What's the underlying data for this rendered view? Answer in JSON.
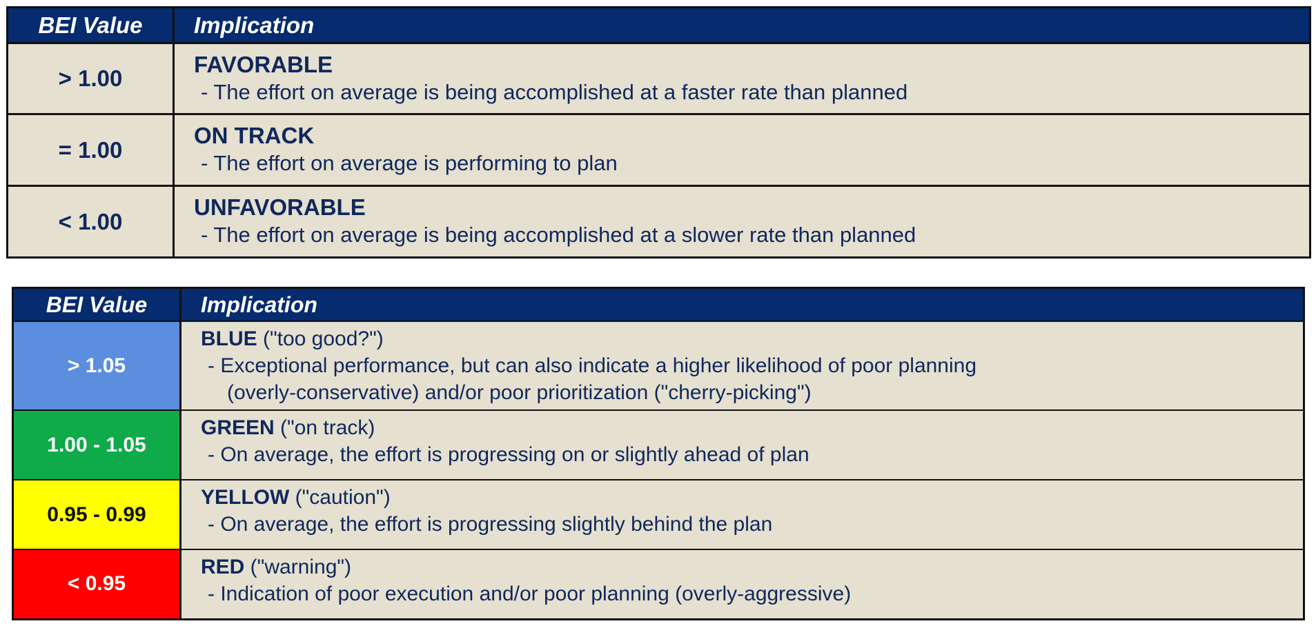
{
  "table1": {
    "header": {
      "value": "BEI Value",
      "implication": "Implication"
    },
    "rows": [
      {
        "value": ">  1.00",
        "category": "FAVORABLE",
        "description": "- The effort on average is being accomplished at a faster rate than planned"
      },
      {
        "value": "=  1.00",
        "category": "ON TRACK",
        "description": "- The effort on average is performing to plan"
      },
      {
        "value": "<  1.00",
        "category": "UNFAVORABLE",
        "description": "- The effort on average is being accomplished at a slower rate than planned"
      }
    ]
  },
  "table2": {
    "header": {
      "value": "BEI Value",
      "implication": "Implication"
    },
    "rows": [
      {
        "value": "> 1.05",
        "color_name": "BLUE",
        "qualifier": " (\"too good?\")",
        "color": "#5b8ede",
        "description": "- Exceptional performance, but can also indicate a higher likelihood of poor planning",
        "description2": "(overly-conservative) and/or poor prioritization (\"cherry-picking\")"
      },
      {
        "value": "1.00 - 1.05",
        "color_name": "GREEN",
        "qualifier": " (\"on track)",
        "color": "#0faa4a",
        "description": "- On average, the effort is progressing on or slightly ahead of plan"
      },
      {
        "value": "0.95  - 0.99",
        "color_name": "YELLOW",
        "qualifier": " (\"caution\")",
        "color": "#ffff00",
        "description": "- On average, the effort is progressing slightly behind the plan"
      },
      {
        "value": "< 0.95",
        "color_name": "RED",
        "qualifier": " (\"warning\")",
        "color": "#ff0000",
        "description": "- Indication of poor execution and/or poor planning (overly-aggressive)"
      }
    ]
  }
}
